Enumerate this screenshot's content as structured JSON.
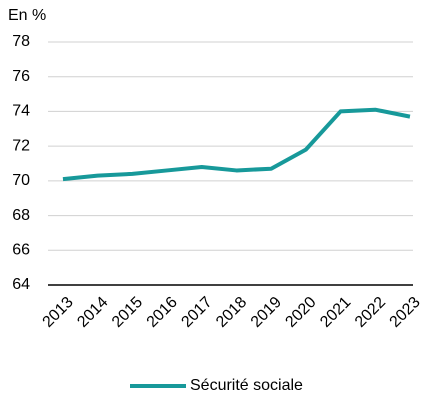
{
  "chart_data": {
    "type": "line",
    "y_axis_label": "En %",
    "categories": [
      "2013",
      "2014",
      "2015",
      "2016",
      "2017",
      "2018",
      "2019",
      "2020",
      "2021",
      "2022",
      "2023"
    ],
    "series": [
      {
        "name": "Sécurité sociale",
        "color": "#17999a",
        "values": [
          70.1,
          70.3,
          70.4,
          70.6,
          70.8,
          70.6,
          70.7,
          71.8,
          74.0,
          74.1,
          73.7
        ]
      }
    ],
    "ylim": [
      64,
      78
    ],
    "yticks": [
      64,
      66,
      68,
      70,
      72,
      74,
      76,
      78
    ],
    "grid": true
  }
}
